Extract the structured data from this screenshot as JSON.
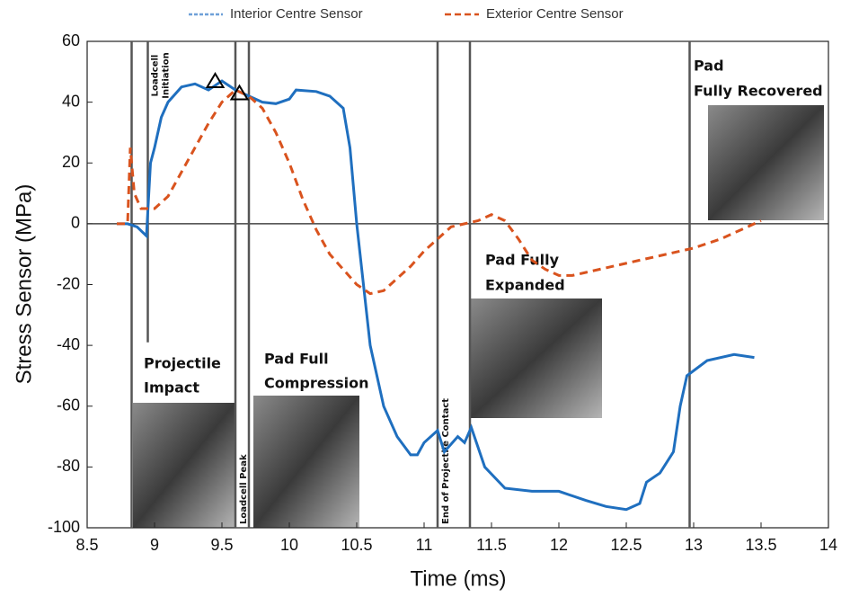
{
  "chart_data": {
    "type": "line",
    "xlabel": "Time (ms)",
    "ylabel": "Stress Sensor (MPa)",
    "xlim": [
      8.5,
      14
    ],
    "ylim": [
      -100,
      60
    ],
    "xticks": [
      8.5,
      9,
      9.5,
      10,
      10.5,
      11,
      11.5,
      12,
      12.5,
      13,
      13.5,
      14
    ],
    "yticks": [
      -100,
      -80,
      -60,
      -40,
      -20,
      0,
      20,
      40,
      60
    ],
    "series": [
      {
        "name": "Interior Centre Sensor",
        "color": "#1f6fbf",
        "legend_color": "#6fa0d8",
        "dash": false,
        "x": [
          8.72,
          8.8,
          8.87,
          8.94,
          8.97,
          9.0,
          9.05,
          9.1,
          9.2,
          9.3,
          9.4,
          9.5,
          9.6,
          9.7,
          9.8,
          9.9,
          10.0,
          10.05,
          10.2,
          10.3,
          10.4,
          10.45,
          10.5,
          10.6,
          10.7,
          10.8,
          10.9,
          10.95,
          11.0,
          11.1,
          11.15,
          11.25,
          11.3,
          11.35,
          11.45,
          11.6,
          11.8,
          12.0,
          12.2,
          12.35,
          12.5,
          12.6,
          12.65,
          12.75,
          12.85,
          12.9,
          12.95,
          13.1,
          13.3,
          13.45
        ],
        "values": [
          0,
          0,
          -1,
          -4,
          20,
          25,
          35,
          40,
          45,
          46,
          44,
          47,
          44,
          42,
          40,
          39.5,
          41,
          44,
          43.5,
          42,
          38,
          25,
          0,
          -40,
          -60,
          -70,
          -76,
          -76,
          -72,
          -68,
          -75,
          -70,
          -72,
          -67,
          -80,
          -87,
          -88,
          -88,
          -91,
          -93,
          -94,
          -92,
          -85,
          -82,
          -75,
          -60,
          -50,
          -45,
          -43,
          -44
        ]
      },
      {
        "name": "Exterior Centre Sensor",
        "color": "#d9531e",
        "legend_color": "#d9531e",
        "dash": true,
        "x": [
          8.72,
          8.8,
          8.82,
          8.85,
          8.9,
          9.0,
          9.1,
          9.2,
          9.3,
          9.4,
          9.5,
          9.6,
          9.7,
          9.8,
          9.9,
          10.0,
          10.1,
          10.2,
          10.3,
          10.4,
          10.5,
          10.6,
          10.7,
          10.8,
          10.9,
          11.0,
          11.1,
          11.2,
          11.3,
          11.4,
          11.5,
          11.6,
          11.7,
          11.8,
          11.9,
          12.0,
          12.1,
          12.2,
          12.4,
          12.6,
          12.8,
          13.0,
          13.2,
          13.4,
          13.5
        ],
        "values": [
          0,
          0,
          25,
          10,
          5,
          5,
          9,
          17,
          25,
          33,
          40,
          44,
          42,
          38,
          30,
          20,
          8,
          -2,
          -10,
          -15,
          -20,
          -23,
          -22,
          -18,
          -14,
          -9,
          -5,
          -1,
          0,
          1,
          3,
          1,
          -5,
          -12,
          -15,
          -17,
          -17,
          -16,
          -14,
          -12,
          -10,
          -8,
          -5,
          -1,
          1
        ]
      }
    ],
    "markers": {
      "x": [
        9.45,
        9.63
      ],
      "values": [
        47,
        43
      ]
    },
    "events": [
      {
        "x": 8.83
      },
      {
        "x": 8.95,
        "ybottom": -39,
        "label": [
          "Loadcell",
          "Initiation"
        ]
      },
      {
        "x": 9.6,
        "label": [
          "Loadcell Peak"
        ]
      },
      {
        "x": 9.7
      },
      {
        "x": 11.1,
        "label": [
          "End of Projectile Contact"
        ]
      },
      {
        "x": 11.34
      },
      {
        "x": 12.97
      }
    ],
    "annotations": [
      [
        "Projectile",
        "Impact"
      ],
      [
        "Pad Full",
        "Compression"
      ],
      [
        "Pad Fully",
        "Expanded"
      ],
      [
        "Pad",
        "Fully Recovered"
      ]
    ]
  }
}
